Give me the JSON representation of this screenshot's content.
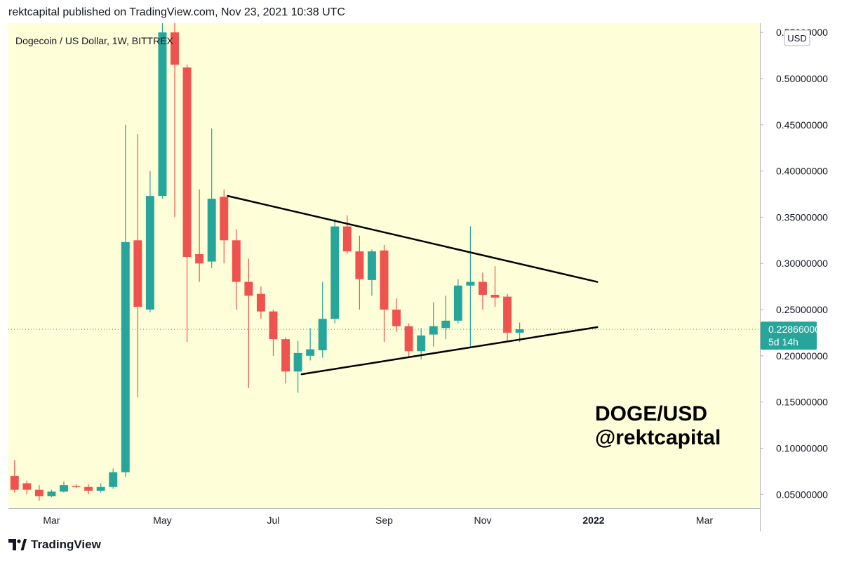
{
  "header": {
    "published": "rektcapital published on TradingView.com, Nov 23, 2021 10:38 UTC"
  },
  "footer": {
    "brand": "TradingView"
  },
  "colors": {
    "background": "#fefed8",
    "up": "#26a69a",
    "down": "#ef5350",
    "axis": "#b2b5be",
    "trendline": "#000000",
    "price_label": "#26a69a"
  },
  "chart_data": {
    "type": "candlestick",
    "title": "Dogecoin / US Dollar, 1W, BITTREX",
    "currency_label": "USD",
    "annotation_lines": [
      "DOGE/USD",
      "@rektcapital"
    ],
    "y_tick_labels": [
      "0.55000000",
      "0.50000000",
      "0.45000000",
      "0.40000000",
      "0.35000000",
      "0.30000000",
      "0.25000000",
      "0.20000000",
      "0.15000000",
      "0.10000000",
      "0.05000000"
    ],
    "y_ticks": [
      0.55,
      0.5,
      0.45,
      0.4,
      0.35,
      0.3,
      0.25,
      0.2,
      0.15,
      0.1,
      0.05
    ],
    "ylim": [
      0.035,
      0.56
    ],
    "x_ticks": [
      {
        "label": "Mar",
        "index": 3
      },
      {
        "label": "May",
        "index": 12
      },
      {
        "label": "Jul",
        "index": 21
      },
      {
        "label": "Sep",
        "index": 30
      },
      {
        "label": "Nov",
        "index": 38
      },
      {
        "label": "2022",
        "index": 47
      },
      {
        "label": "Mar",
        "index": 56
      }
    ],
    "x_range": [
      -0.5,
      60.5
    ],
    "current_price": {
      "value": 0.22866,
      "label": "0.22866000",
      "countdown": "5d 14h"
    },
    "candles": [
      {
        "o": 0.07,
        "h": 0.087,
        "l": 0.052,
        "c": 0.055
      },
      {
        "o": 0.062,
        "h": 0.065,
        "l": 0.05,
        "c": 0.055
      },
      {
        "o": 0.055,
        "h": 0.06,
        "l": 0.043,
        "c": 0.048
      },
      {
        "o": 0.048,
        "h": 0.055,
        "l": 0.047,
        "c": 0.053
      },
      {
        "o": 0.053,
        "h": 0.064,
        "l": 0.052,
        "c": 0.06
      },
      {
        "o": 0.059,
        "h": 0.061,
        "l": 0.057,
        "c": 0.058
      },
      {
        "o": 0.058,
        "h": 0.061,
        "l": 0.05,
        "c": 0.054
      },
      {
        "o": 0.054,
        "h": 0.062,
        "l": 0.052,
        "c": 0.058
      },
      {
        "o": 0.058,
        "h": 0.078,
        "l": 0.056,
        "c": 0.074
      },
      {
        "o": 0.074,
        "h": 0.45,
        "l": 0.069,
        "c": 0.323
      },
      {
        "o": 0.325,
        "h": 0.44,
        "l": 0.155,
        "c": 0.253
      },
      {
        "o": 0.25,
        "h": 0.4,
        "l": 0.247,
        "c": 0.373
      },
      {
        "o": 0.373,
        "h": 0.7,
        "l": 0.37,
        "c": 0.55
      },
      {
        "o": 0.55,
        "h": 0.56,
        "l": 0.35,
        "c": 0.515
      },
      {
        "o": 0.512,
        "h": 0.515,
        "l": 0.215,
        "c": 0.307
      },
      {
        "o": 0.31,
        "h": 0.38,
        "l": 0.28,
        "c": 0.3
      },
      {
        "o": 0.302,
        "h": 0.446,
        "l": 0.295,
        "c": 0.37
      },
      {
        "o": 0.372,
        "h": 0.38,
        "l": 0.3,
        "c": 0.325
      },
      {
        "o": 0.325,
        "h": 0.337,
        "l": 0.25,
        "c": 0.28
      },
      {
        "o": 0.28,
        "h": 0.305,
        "l": 0.165,
        "c": 0.265
      },
      {
        "o": 0.267,
        "h": 0.275,
        "l": 0.24,
        "c": 0.248
      },
      {
        "o": 0.248,
        "h": 0.25,
        "l": 0.2,
        "c": 0.218
      },
      {
        "o": 0.218,
        "h": 0.22,
        "l": 0.17,
        "c": 0.183
      },
      {
        "o": 0.183,
        "h": 0.216,
        "l": 0.16,
        "c": 0.203
      },
      {
        "o": 0.2,
        "h": 0.23,
        "l": 0.195,
        "c": 0.207
      },
      {
        "o": 0.206,
        "h": 0.28,
        "l": 0.198,
        "c": 0.24
      },
      {
        "o": 0.24,
        "h": 0.348,
        "l": 0.235,
        "c": 0.34
      },
      {
        "o": 0.34,
        "h": 0.352,
        "l": 0.31,
        "c": 0.313
      },
      {
        "o": 0.313,
        "h": 0.33,
        "l": 0.25,
        "c": 0.283
      },
      {
        "o": 0.282,
        "h": 0.315,
        "l": 0.265,
        "c": 0.313
      },
      {
        "o": 0.314,
        "h": 0.32,
        "l": 0.215,
        "c": 0.25
      },
      {
        "o": 0.25,
        "h": 0.262,
        "l": 0.226,
        "c": 0.232
      },
      {
        "o": 0.232,
        "h": 0.235,
        "l": 0.198,
        "c": 0.205
      },
      {
        "o": 0.205,
        "h": 0.23,
        "l": 0.196,
        "c": 0.222
      },
      {
        "o": 0.223,
        "h": 0.258,
        "l": 0.21,
        "c": 0.232
      },
      {
        "o": 0.23,
        "h": 0.265,
        "l": 0.218,
        "c": 0.238
      },
      {
        "o": 0.238,
        "h": 0.283,
        "l": 0.235,
        "c": 0.276
      },
      {
        "o": 0.276,
        "h": 0.34,
        "l": 0.21,
        "c": 0.28
      },
      {
        "o": 0.28,
        "h": 0.29,
        "l": 0.25,
        "c": 0.266
      },
      {
        "o": 0.266,
        "h": 0.297,
        "l": 0.253,
        "c": 0.263
      },
      {
        "o": 0.264,
        "h": 0.267,
        "l": 0.216,
        "c": 0.225
      },
      {
        "o": 0.225,
        "h": 0.236,
        "l": 0.215,
        "c": 0.2287
      }
    ],
    "trendlines": [
      {
        "name": "upper",
        "x1": 17.3,
        "y1": 0.373,
        "x2": 47.3,
        "y2": 0.28
      },
      {
        "name": "lower",
        "x1": 23.3,
        "y1": 0.18,
        "x2": 47.3,
        "y2": 0.231
      }
    ]
  }
}
